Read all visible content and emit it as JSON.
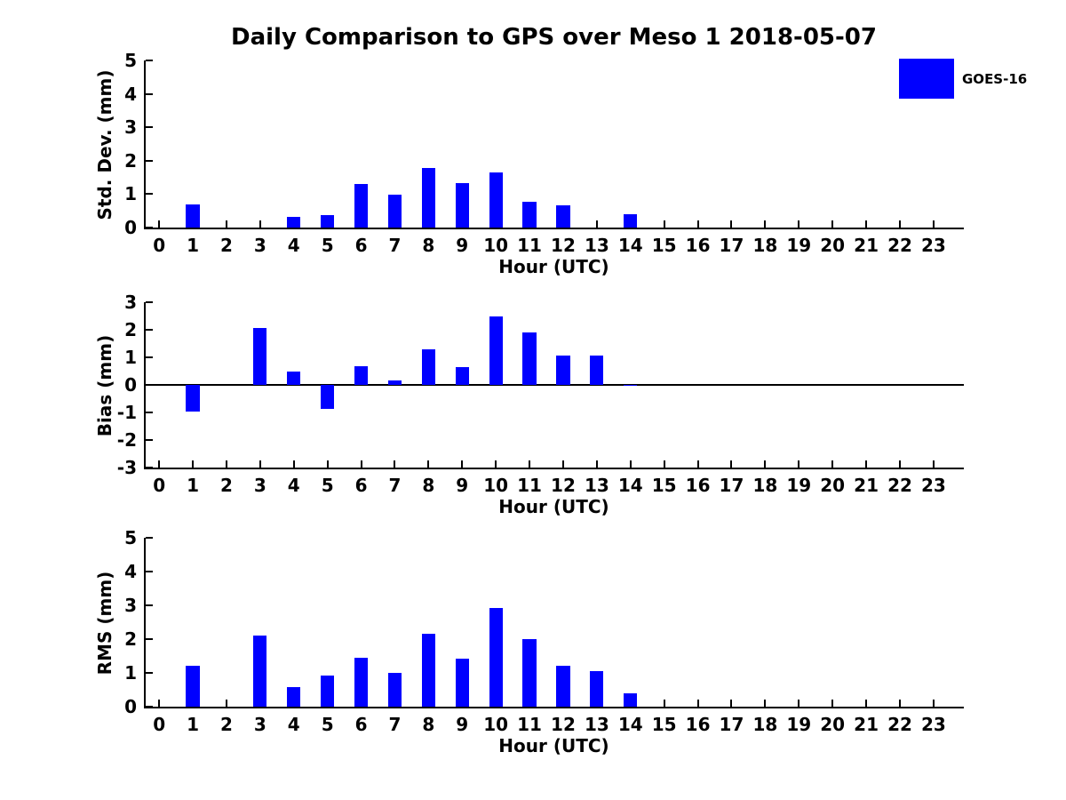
{
  "figure": {
    "title": "Daily Comparison to GPS over Meso 1 2018-05-07",
    "background_color": "#ffffff",
    "text_color": "#000000"
  },
  "legend": {
    "label": "GOES-16",
    "swatch_color": "#0000ff",
    "position": "upper right"
  },
  "axis": {
    "xlabel": "Hour (UTC)",
    "hours": [
      0,
      1,
      2,
      3,
      4,
      5,
      6,
      7,
      8,
      9,
      10,
      11,
      12,
      13,
      14,
      15,
      16,
      17,
      18,
      19,
      20,
      21,
      22,
      23
    ],
    "xlim": [
      -0.4,
      23.9
    ],
    "bar_width": 0.4
  },
  "chart_data": [
    {
      "type": "bar",
      "title": "Daily Comparison to GPS over Meso 1 2018-05-07",
      "series_name": "GOES-16",
      "bar_color": "#0000ff",
      "xlabel": "Hour (UTC)",
      "ylabel": "Std. Dev. (mm)",
      "ylim": [
        0,
        5
      ],
      "yticks": [
        0,
        1,
        2,
        3,
        4,
        5
      ],
      "zero_line": false,
      "grid": false,
      "x": [
        0,
        1,
        2,
        3,
        4,
        5,
        6,
        7,
        8,
        9,
        10,
        11,
        12,
        13,
        14,
        15,
        16,
        17,
        18,
        19,
        20,
        21,
        22,
        23
      ],
      "values": [
        0,
        0.7,
        0,
        0,
        0.32,
        0.36,
        1.31,
        0.98,
        1.79,
        1.32,
        1.66,
        0.78,
        0.67,
        0,
        0.41,
        0,
        0,
        0,
        0,
        0,
        0,
        0,
        0,
        0
      ]
    },
    {
      "type": "bar",
      "title": "",
      "series_name": "GOES-16",
      "bar_color": "#0000ff",
      "xlabel": "Hour (UTC)",
      "ylabel": "Bias (mm)",
      "ylim": [
        -3,
        3
      ],
      "yticks": [
        -3,
        -2,
        -1,
        0,
        1,
        2,
        3
      ],
      "zero_line": true,
      "grid": false,
      "x": [
        0,
        1,
        2,
        3,
        4,
        5,
        6,
        7,
        8,
        9,
        10,
        11,
        12,
        13,
        14,
        15,
        16,
        17,
        18,
        19,
        20,
        21,
        22,
        23
      ],
      "values": [
        0,
        -0.97,
        0,
        2.08,
        0.48,
        -0.86,
        0.68,
        0.15,
        1.28,
        0.65,
        2.47,
        1.89,
        1.06,
        1.05,
        -0.04,
        0,
        0,
        0,
        0,
        0,
        0,
        0,
        0,
        0
      ]
    },
    {
      "type": "bar",
      "title": "",
      "series_name": "GOES-16",
      "bar_color": "#0000ff",
      "xlabel": "Hour (UTC)",
      "ylabel": "RMS (mm)",
      "ylim": [
        0,
        5
      ],
      "yticks": [
        0,
        1,
        2,
        3,
        4,
        5
      ],
      "zero_line": false,
      "grid": false,
      "x": [
        0,
        1,
        2,
        3,
        4,
        5,
        6,
        7,
        8,
        9,
        10,
        11,
        12,
        13,
        14,
        15,
        16,
        17,
        18,
        19,
        20,
        21,
        22,
        23
      ],
      "values": [
        0,
        1.2,
        0,
        2.1,
        0.57,
        0.93,
        1.45,
        0.99,
        2.17,
        1.43,
        2.92,
        2.0,
        1.21,
        1.04,
        0.4,
        0,
        0,
        0,
        0,
        0,
        0,
        0,
        0,
        0
      ]
    }
  ]
}
